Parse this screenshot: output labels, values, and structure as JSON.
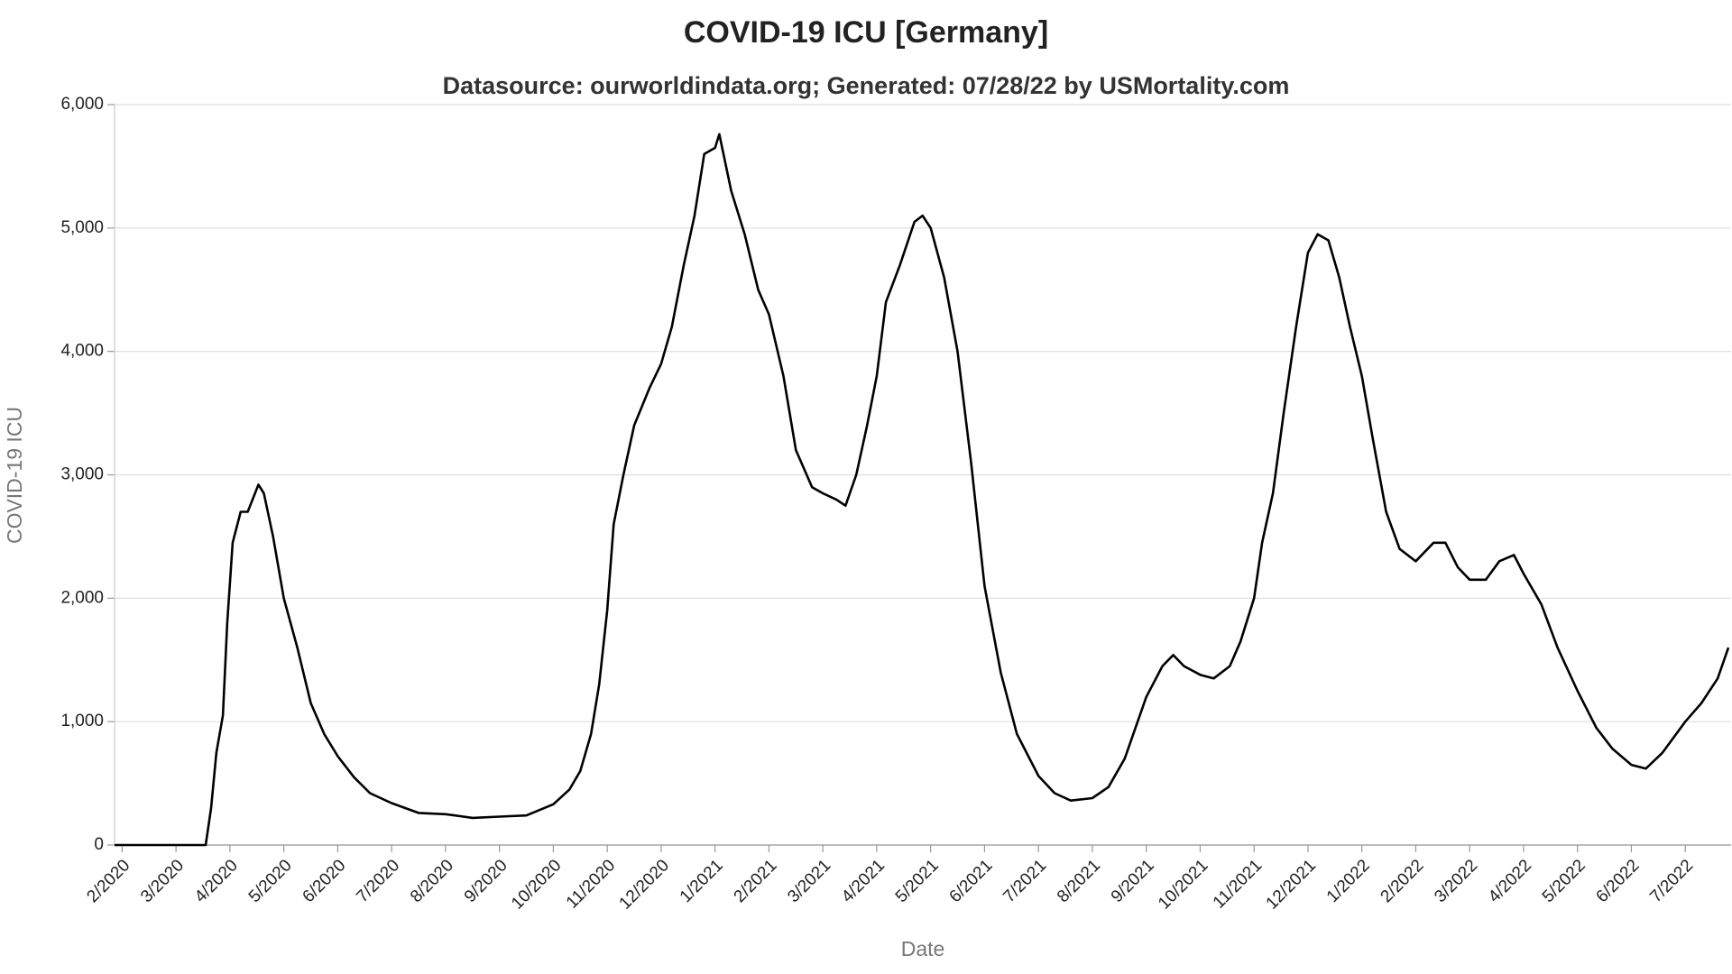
{
  "chart_data": {
    "type": "line",
    "title": "COVID-19 ICU [Germany]",
    "subtitle": "Datasource: ourworldindata.org; Generated: 07/28/22 by USMortality.com",
    "x_label": "Date",
    "y_label": "COVID-19 ICU",
    "grid": true,
    "xlim": [
      -0.14,
      29.85
    ],
    "ylim": [
      0,
      6000
    ],
    "yticks": [
      0,
      {
        "value": 1000,
        "label": "1,000"
      },
      {
        "value": 2000,
        "label": "2,000"
      },
      {
        "value": 3000,
        "label": "3,000"
      },
      {
        "value": 4000,
        "label": "4,000"
      },
      {
        "value": 5000,
        "label": "5,000"
      },
      {
        "value": 6000,
        "label": "6,000"
      }
    ],
    "xticks": [
      {
        "value": 0,
        "label": "2/2020"
      },
      {
        "value": 1,
        "label": "3/2020"
      },
      {
        "value": 2,
        "label": "4/2020"
      },
      {
        "value": 3,
        "label": "5/2020"
      },
      {
        "value": 4,
        "label": "6/2020"
      },
      {
        "value": 5,
        "label": "7/2020"
      },
      {
        "value": 6,
        "label": "8/2020"
      },
      {
        "value": 7,
        "label": "9/2020"
      },
      {
        "value": 8,
        "label": "10/2020"
      },
      {
        "value": 9,
        "label": "11/2020"
      },
      {
        "value": 10,
        "label": "12/2020"
      },
      {
        "value": 11,
        "label": "1/2021"
      },
      {
        "value": 12,
        "label": "2/2021"
      },
      {
        "value": 13,
        "label": "3/2021"
      },
      {
        "value": 14,
        "label": "4/2021"
      },
      {
        "value": 15,
        "label": "5/2021"
      },
      {
        "value": 16,
        "label": "6/2021"
      },
      {
        "value": 17,
        "label": "7/2021"
      },
      {
        "value": 18,
        "label": "8/2021"
      },
      {
        "value": 19,
        "label": "9/2021"
      },
      {
        "value": 20,
        "label": "10/2021"
      },
      {
        "value": 21,
        "label": "11/2021"
      },
      {
        "value": 22,
        "label": "12/2021"
      },
      {
        "value": 23,
        "label": "1/2022"
      },
      {
        "value": 24,
        "label": "2/2022"
      },
      {
        "value": 25,
        "label": "3/2022"
      },
      {
        "value": 26,
        "label": "4/2022"
      },
      {
        "value": 27,
        "label": "5/2022"
      },
      {
        "value": 28,
        "label": "6/2022"
      },
      {
        "value": 29,
        "label": "7/2022"
      }
    ],
    "series": [
      {
        "color": "#000000",
        "x": [
          -0.14,
          1.55,
          1.65,
          1.75,
          1.87,
          1.95,
          2.05,
          2.2,
          2.33,
          2.53,
          2.63,
          2.8,
          3.0,
          3.25,
          3.5,
          3.75,
          4.0,
          4.3,
          4.6,
          5.0,
          5.5,
          6.0,
          6.5,
          7.0,
          7.5,
          8.0,
          8.3,
          8.5,
          8.7,
          8.85,
          9.0,
          9.12,
          9.3,
          9.5,
          9.78,
          10.0,
          10.2,
          10.42,
          10.62,
          10.8,
          11.0,
          11.08,
          11.3,
          11.55,
          11.8,
          12.0,
          12.27,
          12.5,
          12.8,
          13.0,
          13.25,
          13.42,
          13.62,
          13.82,
          14.0,
          14.17,
          14.43,
          14.7,
          14.85,
          15.0,
          15.25,
          15.5,
          15.75,
          16.0,
          16.3,
          16.6,
          17.0,
          17.3,
          17.6,
          18.0,
          18.3,
          18.6,
          19.0,
          19.3,
          19.5,
          19.7,
          20.0,
          20.25,
          20.55,
          20.75,
          21.0,
          21.15,
          21.35,
          21.55,
          21.78,
          22.0,
          22.18,
          22.38,
          22.58,
          22.78,
          23.0,
          23.2,
          23.45,
          23.7,
          24.0,
          24.33,
          24.55,
          24.78,
          25.0,
          25.3,
          25.55,
          25.82,
          26.0,
          26.33,
          26.63,
          27.0,
          27.35,
          27.65,
          28.0,
          28.27,
          28.58,
          29.0,
          29.3,
          29.6,
          29.8
        ],
        "values": [
          0,
          0,
          300,
          750,
          1050,
          1800,
          2450,
          2700,
          2700,
          2920,
          2850,
          2500,
          2000,
          1600,
          1150,
          900,
          720,
          550,
          420,
          340,
          260,
          250,
          220,
          230,
          240,
          330,
          450,
          600,
          900,
          1300,
          1900,
          2600,
          3000,
          3400,
          3700,
          3900,
          4200,
          4700,
          5100,
          5600,
          5650,
          5760,
          5300,
          4950,
          4500,
          4300,
          3800,
          3200,
          2900,
          2850,
          2800,
          2750,
          3000,
          3400,
          3800,
          4400,
          4700,
          5050,
          5100,
          5000,
          4600,
          4000,
          3100,
          2100,
          1400,
          900,
          560,
          420,
          360,
          380,
          470,
          700,
          1200,
          1450,
          1540,
          1450,
          1380,
          1350,
          1450,
          1650,
          2000,
          2450,
          2850,
          3500,
          4200,
          4800,
          4950,
          4900,
          4600,
          4200,
          3800,
          3300,
          2700,
          2400,
          2300,
          2450,
          2450,
          2250,
          2150,
          2150,
          2300,
          2350,
          2200,
          1950,
          1600,
          1250,
          950,
          780,
          650,
          620,
          750,
          1000,
          1150,
          1350,
          1600
        ]
      }
    ]
  }
}
